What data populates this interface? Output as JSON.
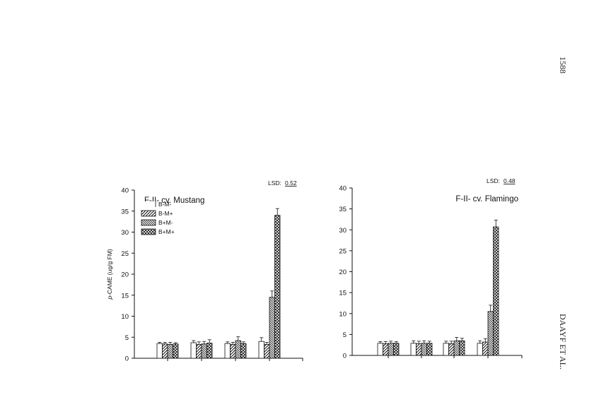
{
  "page": {
    "page_number": "1588",
    "running_head": "DAAYF ET AL."
  },
  "chart_data": [
    {
      "type": "bar",
      "title": "F-II- cv. Mustang",
      "ylabel": "p-CAME (ug/g FM)",
      "ylabel_italic_prefix": "p",
      "ylabel_rest": "-CAME (ug/g FM)",
      "ylim": [
        0,
        40
      ],
      "yticks": [
        0,
        5,
        10,
        15,
        20,
        25,
        30,
        35,
        40
      ],
      "categories": [
        "",
        "",
        "",
        ""
      ],
      "lsd_label": "LSD:",
      "lsd_value": "0.52",
      "legend_position": "top-left",
      "series": [
        {
          "name": "B-M-",
          "pattern": "blank",
          "values": [
            3.5,
            3.7,
            3.5,
            4.0
          ],
          "errors": [
            0.3,
            0.5,
            0.4,
            0.9
          ]
        },
        {
          "name": "B-M+",
          "pattern": "diag-right",
          "values": [
            3.4,
            3.3,
            3.3,
            3.3
          ],
          "errors": [
            0.4,
            0.6,
            0.5,
            0.5
          ]
        },
        {
          "name": "B+M-",
          "pattern": "diag-left",
          "values": [
            3.3,
            3.4,
            4.2,
            14.5
          ],
          "errors": [
            0.5,
            0.6,
            0.9,
            1.5
          ]
        },
        {
          "name": "B+M+",
          "pattern": "cross",
          "values": [
            3.4,
            3.6,
            3.5,
            34.0
          ],
          "errors": [
            0.3,
            0.8,
            0.4,
            1.6
          ]
        }
      ]
    },
    {
      "type": "bar",
      "title": "F-II- cv. Flamingo",
      "ylabel": "",
      "ylim": [
        0,
        40
      ],
      "yticks": [
        0,
        5,
        10,
        15,
        20,
        25,
        30,
        35,
        40
      ],
      "categories": [
        "",
        "",
        "",
        ""
      ],
      "lsd_label": "LSD:",
      "lsd_value": "0.48",
      "legend_position": "none",
      "series": [
        {
          "name": "B-M-",
          "pattern": "blank",
          "values": [
            2.9,
            2.9,
            2.9,
            2.9
          ],
          "errors": [
            0.4,
            0.6,
            0.5,
            0.6
          ]
        },
        {
          "name": "B-M+",
          "pattern": "diag-right",
          "values": [
            2.8,
            2.8,
            2.8,
            3.2
          ],
          "errors": [
            0.5,
            0.6,
            0.6,
            0.8
          ]
        },
        {
          "name": "B+M-",
          "pattern": "diag-left",
          "values": [
            2.9,
            2.9,
            3.5,
            10.5
          ],
          "errors": [
            0.5,
            0.6,
            0.8,
            1.5
          ]
        },
        {
          "name": "B+M+",
          "pattern": "cross",
          "values": [
            2.9,
            2.9,
            3.5,
            30.7
          ],
          "errors": [
            0.4,
            0.5,
            0.6,
            1.6
          ]
        }
      ]
    }
  ]
}
